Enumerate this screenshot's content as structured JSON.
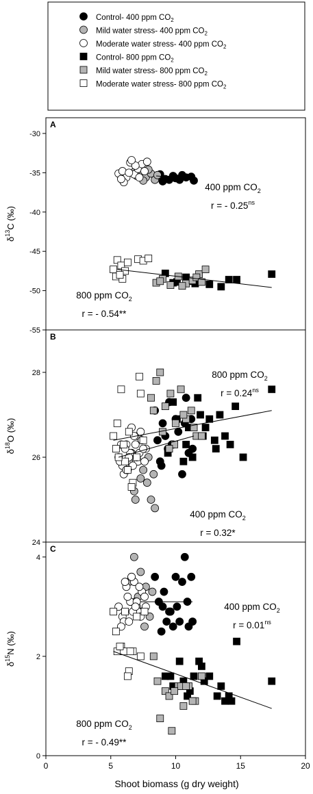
{
  "legend": {
    "items": [
      {
        "marker": "circle",
        "fill": "#000000",
        "text": "Control- 400 ppm CO",
        "sub": "2"
      },
      {
        "marker": "circle",
        "fill": "#b4b4b4",
        "text": "Mild water stress- 400 ppm CO",
        "sub": "2"
      },
      {
        "marker": "circle",
        "fill": "#ffffff",
        "text": "Moderate water stress- 400 ppm CO",
        "sub": "2"
      },
      {
        "marker": "square",
        "fill": "#000000",
        "text": "Control- 800 ppm CO",
        "sub": "2"
      },
      {
        "marker": "square",
        "fill": "#b4b4b4",
        "text": "Mild water stress- 800 ppm CO",
        "sub": "2"
      },
      {
        "marker": "square",
        "fill": "#ffffff",
        "text": "Moderate water stress- 800 ppm CO",
        "sub": "2"
      }
    ]
  },
  "xaxis": {
    "label": "Shoot biomass (g dry weight)",
    "ticks": [
      "0",
      "5",
      "10",
      "15",
      "20"
    ],
    "range": [
      0,
      20
    ]
  },
  "chart_data": [
    {
      "type": "scatter",
      "panel": "A",
      "ylabel": {
        "main": "δ",
        "sup": "13",
        "rest": "C (‰)"
      },
      "ylim": [
        -55,
        -28
      ],
      "yticks": [
        "-30",
        "-35",
        "-40",
        "-45",
        "-50",
        "-55"
      ],
      "ytick_values": [
        -30,
        -35,
        -40,
        -45,
        -50,
        -55
      ],
      "annotations": [
        {
          "line1": "400 ppm CO",
          "sub": "2",
          "line2": "r = - 0.25",
          "sup": "ns"
        },
        {
          "line1": "800 ppm CO",
          "sub": "2",
          "line2": "r = - 0.54**",
          "sup": ""
        }
      ],
      "trend_lines": [
        {
          "group": "400 ppm",
          "x": [
            8.5,
            11.4
          ],
          "y": [
            -35.4,
            -35.8
          ]
        },
        {
          "group": "800 ppm",
          "x": [
            5.5,
            17.4
          ],
          "y": [
            -47.3,
            -49.6
          ]
        }
      ],
      "series": [
        {
          "marker": "circle",
          "fill": "#000000",
          "x": [
            8.5,
            9.2,
            9.8,
            10.3,
            10.8,
            11.2,
            9.0,
            10.0,
            11.4,
            8.8,
            9.5,
            10.5
          ],
          "y": [
            -35.5,
            -35.8,
            -35.4,
            -35.9,
            -35.6,
            -35.5,
            -36.1,
            -35.7,
            -36.0,
            -35.2,
            -35.9,
            -35.3
          ]
        },
        {
          "marker": "circle",
          "fill": "#b4b4b4",
          "x": [
            6.8,
            7.3,
            7.7,
            8.1,
            8.4,
            7.0,
            7.9,
            8.6,
            7.5
          ],
          "y": [
            -34.9,
            -35.2,
            -35.6,
            -35.1,
            -35.9,
            -35.4,
            -34.6,
            -35.3,
            -36.0
          ]
        },
        {
          "marker": "circle",
          "fill": "#ffffff",
          "x": [
            5.6,
            5.9,
            6.2,
            6.5,
            6.8,
            7.1,
            7.4,
            6.0,
            6.4,
            6.9,
            7.6,
            5.8,
            6.6,
            7.2,
            7.8
          ],
          "y": [
            -35.1,
            -34.8,
            -35.6,
            -33.7,
            -35.2,
            -34.5,
            -33.9,
            -36.2,
            -35.0,
            -34.1,
            -34.8,
            -35.8,
            -33.4,
            -35.6,
            -33.6
          ]
        },
        {
          "marker": "square",
          "fill": "#000000",
          "x": [
            9.2,
            10.1,
            10.8,
            11.5,
            12.6,
            13.5,
            14.1,
            14.7,
            17.4,
            11.0,
            9.8
          ],
          "y": [
            -47.8,
            -48.9,
            -48.3,
            -49.1,
            -49.2,
            -49.5,
            -48.6,
            -48.6,
            -47.9,
            -48.8,
            -49.0
          ]
        },
        {
          "marker": "square",
          "fill": "#b4b4b4",
          "x": [
            8.5,
            9.0,
            9.6,
            10.2,
            10.8,
            11.3,
            11.8,
            12.3,
            8.8,
            10.5,
            11.6,
            12.0
          ],
          "y": [
            -49.0,
            -48.5,
            -49.3,
            -48.2,
            -49.1,
            -48.7,
            -47.9,
            -47.3,
            -48.8,
            -49.4,
            -48.3,
            -48.9
          ]
        },
        {
          "marker": "square",
          "fill": "#ffffff",
          "x": [
            5.2,
            5.5,
            5.8,
            6.1,
            5.4,
            5.9,
            6.3,
            7.1,
            7.5,
            7.9,
            5.7
          ],
          "y": [
            -47.3,
            -46.1,
            -46.8,
            -47.5,
            -48.2,
            -48.5,
            -46.4,
            -46.0,
            -46.2,
            -45.9,
            -48.0
          ]
        }
      ]
    },
    {
      "type": "scatter",
      "panel": "B",
      "ylabel": {
        "main": "δ",
        "sup": "18",
        "rest": "O (‰)"
      },
      "ylim": [
        24,
        29.0
      ],
      "yticks": [
        "28",
        "26",
        "24"
      ],
      "ytick_values": [
        28,
        26,
        24
      ],
      "annotations": [
        {
          "line1": "800 ppm CO",
          "sub": "2",
          "line2": "r = 0.24",
          "sup": "ns"
        },
        {
          "line1": "400 ppm CO",
          "sub": "2",
          "line2": "r = 0.32*",
          "sup": ""
        }
      ],
      "trend_lines": [
        {
          "group": "800 ppm",
          "x": [
            5.2,
            17.4
          ],
          "y": [
            26.4,
            27.1
          ]
        },
        {
          "group": "400 ppm",
          "x": [
            5.6,
            11.4
          ],
          "y": [
            26.0,
            26.5
          ]
        }
      ],
      "series": [
        {
          "marker": "circle",
          "fill": "#000000",
          "x": [
            8.4,
            9.0,
            9.5,
            10.2,
            10.8,
            11.2,
            8.8,
            9.8,
            10.5,
            11.0,
            9.2,
            10.0,
            8.6,
            9.4,
            10.7,
            11.3,
            9.7,
            8.9
          ],
          "y": [
            27.1,
            26.8,
            27.3,
            26.6,
            27.4,
            26.9,
            25.9,
            26.3,
            25.6,
            26.1,
            26.5,
            26.9,
            26.4,
            26.2,
            26.8,
            26.2,
            26.3,
            25.8
          ]
        },
        {
          "marker": "circle",
          "fill": "#b4b4b4",
          "x": [
            6.4,
            6.8,
            7.1,
            7.5,
            7.8,
            8.1,
            8.4,
            6.6,
            7.3,
            7.9,
            8.3,
            6.9,
            7.6
          ],
          "y": [
            25.9,
            25.2,
            26.5,
            25.7,
            25.4,
            25.0,
            24.8,
            26.1,
            25.5,
            26.0,
            25.6,
            25.0,
            26.2
          ]
        },
        {
          "marker": "circle",
          "fill": "#ffffff",
          "x": [
            5.6,
            5.9,
            6.2,
            6.5,
            6.8,
            7.1,
            7.4,
            7.7,
            6.0,
            6.3,
            6.6,
            7.0,
            7.3,
            5.8,
            6.1,
            6.7,
            7.2,
            7.6,
            6.4,
            6.9,
            5.7,
            6.2,
            7.5
          ],
          "y": [
            26.0,
            25.8,
            26.3,
            26.1,
            26.5,
            25.9,
            26.4,
            26.2,
            25.6,
            25.7,
            26.7,
            26.0,
            26.6,
            26.3,
            26.2,
            25.8,
            26.1,
            25.9,
            26.0,
            26.3,
            25.9,
            25.7,
            26.2
          ]
        },
        {
          "marker": "square",
          "fill": "#000000",
          "x": [
            9.4,
            10.1,
            10.8,
            11.3,
            11.7,
            12.1,
            12.6,
            13.1,
            13.4,
            13.8,
            14.2,
            14.6,
            15.2,
            17.4,
            10.6,
            11.9,
            12.3,
            13.0,
            9.8,
            11.0
          ],
          "y": [
            26.1,
            26.9,
            26.3,
            26.0,
            27.4,
            26.5,
            26.9,
            26.2,
            27.0,
            26.5,
            26.3,
            27.2,
            26.0,
            27.6,
            25.9,
            27.0,
            26.7,
            26.4,
            27.3,
            26.7
          ]
        },
        {
          "marker": "square",
          "fill": "#b4b4b4",
          "x": [
            8.5,
            8.8,
            9.2,
            9.6,
            10.0,
            10.4,
            10.8,
            11.2,
            11.6,
            8.1,
            9.0,
            9.9,
            10.6,
            11.4,
            12.0,
            8.3,
            9.5
          ],
          "y": [
            27.8,
            28.0,
            27.2,
            27.5,
            26.8,
            27.6,
            26.9,
            27.1,
            26.5,
            27.4,
            26.6,
            26.3,
            27.0,
            26.7,
            26.5,
            27.1,
            26.2
          ]
        },
        {
          "marker": "square",
          "fill": "#ffffff",
          "x": [
            5.2,
            5.5,
            5.8,
            6.1,
            6.4,
            6.7,
            7.0,
            7.3,
            5.4,
            6.0,
            6.6,
            7.2,
            5.6,
            6.3,
            7.5
          ],
          "y": [
            26.5,
            26.8,
            27.6,
            25.9,
            26.6,
            25.4,
            26.0,
            27.5,
            26.2,
            26.3,
            25.3,
            27.9,
            26.0,
            25.7,
            26.4
          ]
        }
      ]
    },
    {
      "type": "scatter",
      "panel": "C",
      "ylabel": {
        "main": "δ",
        "sup": "15",
        "rest": "N (‰)"
      },
      "ylim": [
        0,
        4.3
      ],
      "yticks": [
        "4",
        "2",
        "0"
      ],
      "ytick_values": [
        4,
        2,
        0
      ],
      "annotations": [
        {
          "line1": "400 ppm CO",
          "sub": "2",
          "line2": "r = 0.01",
          "sup": "ns"
        },
        {
          "line1": "800 ppm CO",
          "sub": "2",
          "line2": "r = - 0.49**",
          "sup": ""
        }
      ],
      "trend_lines": [
        {
          "group": "400 ppm",
          "x": [
            7.3,
            11.3
          ],
          "y": [
            3.1,
            3.1
          ]
        },
        {
          "group": "800 ppm",
          "x": [
            5.2,
            17.4
          ],
          "y": [
            2.1,
            0.95
          ]
        }
      ],
      "series": [
        {
          "marker": "circle",
          "fill": "#000000",
          "x": [
            8.4,
            9.0,
            9.6,
            10.0,
            10.5,
            10.7,
            11.2,
            8.7,
            9.3,
            9.8,
            10.3,
            11.0,
            9.1,
            10.1,
            8.9,
            9.5,
            10.9,
            11.3
          ],
          "y": [
            3.6,
            3.0,
            2.9,
            3.6,
            3.5,
            4.0,
            3.6,
            3.1,
            2.7,
            2.6,
            2.7,
            2.6,
            3.3,
            3.0,
            2.5,
            2.9,
            3.1,
            2.7
          ]
        },
        {
          "marker": "circle",
          "fill": "#b4b4b4",
          "x": [
            6.4,
            6.8,
            7.1,
            7.4,
            7.7,
            8.0,
            6.6,
            7.0,
            7.3,
            7.6,
            8.2,
            6.9
          ],
          "y": [
            3.5,
            4.0,
            3.2,
            2.9,
            3.4,
            2.8,
            3.6,
            3.0,
            3.7,
            2.6,
            3.3,
            3.1
          ]
        },
        {
          "marker": "circle",
          "fill": "#ffffff",
          "x": [
            5.6,
            5.9,
            6.2,
            6.5,
            6.8,
            7.1,
            7.4,
            7.7,
            6.0,
            6.3,
            6.6,
            7.0,
            7.3,
            5.8,
            6.1,
            6.7,
            7.2,
            7.6,
            6.4,
            6.9
          ],
          "y": [
            3.0,
            2.8,
            3.4,
            3.1,
            3.5,
            2.9,
            3.3,
            3.0,
            2.7,
            3.2,
            3.6,
            3.1,
            2.8,
            2.6,
            3.5,
            2.9,
            3.4,
            3.2,
            2.7,
            3.0
          ]
        },
        {
          "marker": "square",
          "fill": "#000000",
          "x": [
            9.2,
            9.8,
            10.3,
            10.9,
            11.4,
            11.8,
            12.2,
            12.6,
            13.2,
            13.8,
            14.3,
            14.7,
            17.4,
            10.6,
            11.1,
            12.0,
            13.5,
            14.1,
            9.6
          ],
          "y": [
            1.6,
            1.4,
            1.9,
            1.2,
            1.6,
            1.9,
            1.5,
            1.6,
            1.2,
            1.1,
            1.1,
            2.3,
            1.5,
            1.5,
            1.3,
            1.8,
            1.4,
            1.2,
            1.6
          ]
        },
        {
          "marker": "square",
          "fill": "#b4b4b4",
          "x": [
            8.3,
            8.8,
            9.2,
            9.7,
            10.2,
            10.6,
            11.0,
            11.5,
            12.0,
            8.6,
            9.5,
            10.4,
            11.3,
            9.9,
            10.8
          ],
          "y": [
            2.0,
            0.75,
            1.3,
            0.5,
            1.4,
            1.0,
            1.4,
            1.1,
            1.6,
            1.5,
            1.2,
            1.4,
            1.1,
            1.3,
            1.4
          ]
        },
        {
          "marker": "square",
          "fill": "#ffffff",
          "x": [
            5.2,
            5.5,
            5.8,
            6.1,
            6.4,
            6.7,
            7.0,
            7.3,
            5.4,
            6.0,
            6.3,
            7.6,
            5.7,
            6.5
          ],
          "y": [
            2.9,
            2.1,
            2.2,
            2.9,
            1.7,
            2.1,
            2.8,
            2.0,
            2.5,
            2.1,
            1.6,
            2.9,
            2.2,
            2.1
          ]
        }
      ]
    }
  ]
}
